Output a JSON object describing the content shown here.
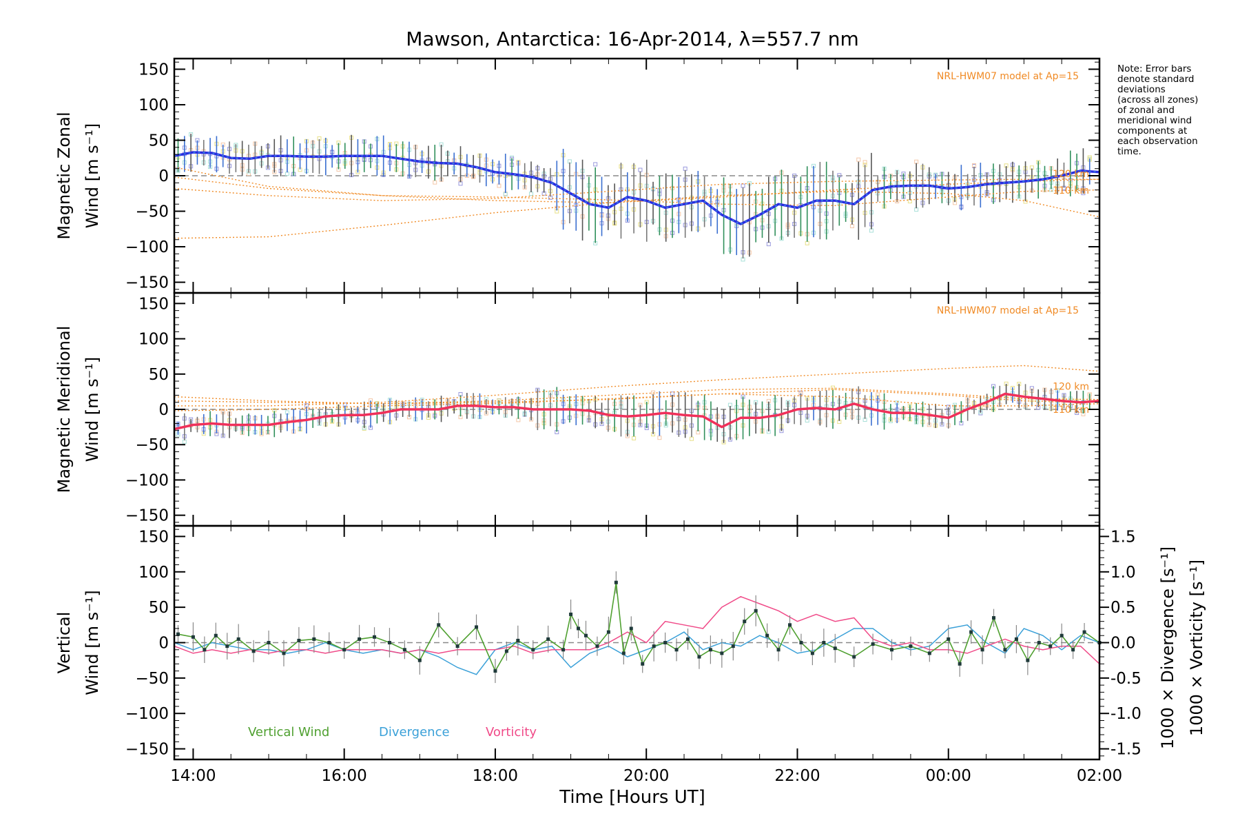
{
  "chart_data": {
    "title": "Mawson, Antarctica: 16-Apr-2014, λ=557.7 nm",
    "xlabel": "Time [Hours UT]",
    "x_ticks": [
      "14:00",
      "16:00",
      "18:00",
      "20:00",
      "22:00",
      "00:00",
      "02:00"
    ],
    "x_tick_hours": [
      14,
      16,
      18,
      20,
      22,
      24,
      26
    ],
    "xlim": [
      13.75,
      26.0
    ],
    "note_lines": [
      "Note: Error bars",
      "denote standard",
      "deviations",
      "(across all zones)",
      "of zonal and",
      "meridional wind",
      "components at",
      "each observation",
      "time."
    ],
    "colors": {
      "zonal": "#2a2ae0",
      "zonal_light": "#3a9fe0",
      "meridional": "#f0305a",
      "model": "#f08a24",
      "vertical": "#4fa030",
      "divergence": "#3aa0d8",
      "vorticity": "#f04a88",
      "zone_points": "#9999dd"
    },
    "panels": [
      {
        "id": "zonal",
        "type": "line",
        "ylabel_lines": [
          "Magnetic Zonal",
          "Wind [m s⁻¹]"
        ],
        "ylim": [
          -165,
          165
        ],
        "y_ticks": [
          150,
          100,
          50,
          0,
          -50,
          -100,
          -150
        ],
        "model_label": "NRL-HWM07 model at Ap=15",
        "model_height_labels": [
          "120 km",
          "110 km"
        ],
        "series": [
          {
            "role": "mean",
            "x": [
              13.75,
              14.0,
              14.25,
              14.5,
              14.75,
              15.0,
              15.25,
              15.5,
              15.75,
              16.0,
              16.25,
              16.5,
              16.75,
              17.0,
              17.25,
              17.5,
              17.75,
              18.0,
              18.25,
              18.5,
              18.75,
              19.0,
              19.25,
              19.5,
              19.75,
              20.0,
              20.25,
              20.5,
              20.75,
              21.0,
              21.25,
              21.5,
              21.75,
              22.0,
              22.25,
              22.5,
              22.75,
              23.0,
              23.25,
              23.5,
              23.75,
              24.0,
              24.25,
              24.5,
              24.75,
              25.0,
              25.25,
              25.5,
              25.75,
              26.0
            ],
            "y": [
              28,
              33,
              32,
              25,
              24,
              28,
              28,
              27,
              27,
              28,
              28,
              28,
              24,
              20,
              18,
              17,
              12,
              5,
              2,
              -2,
              -10,
              -25,
              -40,
              -45,
              -30,
              -35,
              -45,
              -40,
              -35,
              -55,
              -68,
              -55,
              -40,
              -45,
              -35,
              -35,
              -40,
              -20,
              -15,
              -14,
              -14,
              -18,
              -16,
              -12,
              -10,
              -8,
              -5,
              0,
              7,
              5
            ]
          },
          {
            "role": "model",
            "x": [
              13.75,
              15,
              16.5,
              18,
              19.5,
              21,
              22.5,
              24,
              25,
              26
            ],
            "y": [
              -18,
              -28,
              -35,
              -32,
              -22,
              -12,
              -8,
              -6,
              -5,
              -5
            ]
          },
          {
            "role": "model",
            "x": [
              13.75,
              15,
              16.5,
              18,
              19.5,
              21,
              22.5,
              24,
              25,
              26
            ],
            "y": [
              12,
              -15,
              -28,
              -35,
              -38,
              -30,
              -20,
              -12,
              -8,
              -5
            ]
          },
          {
            "role": "model",
            "x": [
              13.75,
              15,
              16.5,
              18,
              19.5,
              21,
              22.5,
              24,
              25,
              26
            ],
            "y": [
              -88,
              -86,
              -70,
              -52,
              -38,
              -28,
              -22,
              -25,
              -35,
              -58
            ]
          },
          {
            "role": "model",
            "x": [
              13.75,
              15,
              16.5,
              18,
              19.5,
              21,
              22.5,
              24,
              25,
              26
            ],
            "y": [
              -2,
              -18,
              -28,
              -30,
              -34,
              -40,
              -42,
              -30,
              -22,
              -20
            ]
          }
        ]
      },
      {
        "id": "meridional",
        "type": "line",
        "ylabel_lines": [
          "Magnetic Meridional",
          "Wind [m s⁻¹]"
        ],
        "ylim": [
          -165,
          165
        ],
        "y_ticks": [
          150,
          100,
          50,
          0,
          -50,
          -100,
          -150
        ],
        "model_label": "NRL-HWM07 model at Ap=15",
        "model_height_labels": [
          "120 km",
          "110 km"
        ],
        "series": [
          {
            "role": "mean",
            "x": [
              13.75,
              14.0,
              14.25,
              14.5,
              14.75,
              15.0,
              15.25,
              15.5,
              15.75,
              16.0,
              16.25,
              16.5,
              16.75,
              17.0,
              17.25,
              17.5,
              17.75,
              18.0,
              18.25,
              18.5,
              18.75,
              19.0,
              19.25,
              19.5,
              19.75,
              20.0,
              20.25,
              20.5,
              20.75,
              21.0,
              21.25,
              21.5,
              21.75,
              22.0,
              22.25,
              22.5,
              22.75,
              23.0,
              23.25,
              23.5,
              23.75,
              24.0,
              24.25,
              24.5,
              24.75,
              25.0,
              25.25,
              25.5,
              25.75,
              26.0
            ],
            "y": [
              -28,
              -22,
              -20,
              -22,
              -22,
              -22,
              -18,
              -15,
              -10,
              -8,
              -8,
              -5,
              0,
              0,
              0,
              5,
              5,
              3,
              3,
              0,
              0,
              0,
              -2,
              -8,
              -10,
              -8,
              -5,
              -8,
              -10,
              -25,
              -12,
              -12,
              -8,
              0,
              2,
              0,
              8,
              0,
              -5,
              -5,
              -8,
              -12,
              0,
              10,
              22,
              18,
              15,
              12,
              10,
              12
            ]
          },
          {
            "role": "model",
            "x": [
              13.75,
              15,
              16.5,
              18,
              19.5,
              21,
              22.5,
              24,
              25,
              26
            ],
            "y": [
              18,
              12,
              8,
              10,
              14,
              22,
              28,
              20,
              12,
              10
            ]
          },
          {
            "role": "model",
            "x": [
              13.75,
              15,
              16.5,
              18,
              19.5,
              21,
              22.5,
              24,
              25,
              26
            ],
            "y": [
              5,
              5,
              10,
              20,
              32,
              42,
              50,
              58,
              62,
              54
            ]
          },
          {
            "role": "model",
            "x": [
              13.75,
              15,
              16.5,
              18,
              19.5,
              21,
              22.5,
              24,
              25,
              26
            ],
            "y": [
              12,
              10,
              8,
              12,
              20,
              28,
              30,
              22,
              15,
              14
            ]
          },
          {
            "role": "model",
            "x": [
              13.75,
              15,
              16.5,
              18,
              19.5,
              21,
              22.5,
              24,
              25,
              26
            ],
            "y": [
              -2,
              0,
              5,
              8,
              15,
              22,
              18,
              5,
              5,
              8
            ]
          }
        ]
      },
      {
        "id": "vertical",
        "type": "line",
        "ylabel_lines": [
          "Vertical",
          "Wind [m s⁻¹]"
        ],
        "ylim": [
          -165,
          165
        ],
        "y_ticks": [
          150,
          100,
          50,
          0,
          -50,
          -100,
          -150
        ],
        "right_axis": {
          "ylim": [
            -1.65,
            1.65
          ],
          "y_ticks": [
            "1.5",
            "1.0",
            "0.5",
            "0.0",
            "-0.5",
            "-1.0",
            "-1.5"
          ],
          "y_tick_values": [
            1.5,
            1.0,
            0.5,
            0.0,
            -0.5,
            -1.0,
            -1.5
          ],
          "label_divergence": "1000 × Divergence [s⁻¹]",
          "label_vorticity": "1000 × Vorticity [s⁻¹]"
        },
        "legend": [
          "Vertical Wind",
          "Divergence",
          "Vorticity"
        ],
        "series": [
          {
            "name": "Vertical Wind",
            "x": [
              13.8,
              14.0,
              14.15,
              14.3,
              14.45,
              14.6,
              14.8,
              15.0,
              15.2,
              15.4,
              15.6,
              15.8,
              16.0,
              16.2,
              16.4,
              16.6,
              16.8,
              17.0,
              17.25,
              17.5,
              17.75,
              18.0,
              18.15,
              18.3,
              18.5,
              18.7,
              18.9,
              19.0,
              19.1,
              19.2,
              19.35,
              19.5,
              19.6,
              19.7,
              19.8,
              19.95,
              20.1,
              20.25,
              20.4,
              20.55,
              20.7,
              20.85,
              21.0,
              21.15,
              21.3,
              21.45,
              21.6,
              21.75,
              21.9,
              22.05,
              22.2,
              22.35,
              22.5,
              22.75,
              23.0,
              23.25,
              23.5,
              23.75,
              24.0,
              24.15,
              24.3,
              24.45,
              24.6,
              24.75,
              24.9,
              25.05,
              25.2,
              25.35,
              25.5,
              25.65,
              25.8,
              26.0
            ],
            "y": [
              12,
              8,
              -10,
              10,
              -5,
              5,
              -12,
              0,
              -15,
              3,
              5,
              0,
              -10,
              5,
              8,
              0,
              -10,
              -25,
              25,
              -5,
              22,
              -40,
              -12,
              3,
              -10,
              5,
              -10,
              40,
              20,
              10,
              -5,
              15,
              85,
              -15,
              20,
              -30,
              -5,
              0,
              -10,
              5,
              -20,
              -10,
              -15,
              -5,
              30,
              45,
              10,
              -10,
              25,
              0,
              -15,
              0,
              -8,
              -20,
              -2,
              -10,
              -5,
              -15,
              5,
              -30,
              15,
              -10,
              35,
              -10,
              5,
              -25,
              0,
              -5,
              10,
              -10,
              15,
              0
            ]
          },
          {
            "name": "Divergence",
            "x": [
              13.75,
              14.0,
              14.25,
              14.5,
              14.75,
              15.0,
              15.25,
              15.5,
              15.75,
              16.0,
              16.25,
              16.5,
              16.75,
              17.0,
              17.25,
              17.5,
              17.75,
              18.0,
              18.25,
              18.5,
              18.75,
              19.0,
              19.25,
              19.5,
              19.75,
              20.0,
              20.25,
              20.5,
              20.75,
              21.0,
              21.25,
              21.5,
              21.75,
              22.0,
              22.25,
              22.5,
              22.75,
              23.0,
              23.25,
              23.5,
              23.75,
              24.0,
              24.25,
              24.5,
              24.75,
              25.0,
              25.25,
              25.5,
              25.75,
              26.0
            ],
            "y": [
              0.0,
              -0.1,
              0.0,
              -0.05,
              -0.1,
              -0.1,
              -0.15,
              -0.1,
              0.0,
              -0.1,
              -0.15,
              -0.1,
              -0.15,
              -0.1,
              -0.2,
              -0.35,
              -0.45,
              -0.1,
              0.0,
              -0.1,
              -0.05,
              -0.35,
              -0.15,
              -0.05,
              -0.2,
              -0.1,
              0.0,
              0.15,
              -0.1,
              0.0,
              -0.05,
              0.1,
              0.0,
              -0.15,
              -0.1,
              0.05,
              0.2,
              0.2,
              0.0,
              -0.1,
              -0.05,
              0.2,
              0.25,
              0.0,
              -0.15,
              0.2,
              0.1,
              -0.1,
              0.1,
              0.0
            ]
          },
          {
            "name": "Vorticity",
            "x": [
              13.75,
              14.0,
              14.25,
              14.5,
              14.75,
              15.0,
              15.25,
              15.5,
              15.75,
              16.0,
              16.25,
              16.5,
              16.75,
              17.0,
              17.25,
              17.5,
              17.75,
              18.0,
              18.25,
              18.5,
              18.75,
              19.0,
              19.25,
              19.5,
              19.75,
              20.0,
              20.25,
              20.5,
              20.75,
              21.0,
              21.25,
              21.5,
              21.75,
              22.0,
              22.25,
              22.5,
              22.75,
              23.0,
              23.25,
              23.5,
              23.75,
              24.0,
              24.25,
              24.5,
              24.75,
              25.0,
              25.25,
              25.5,
              25.75,
              26.0
            ],
            "y": [
              -0.05,
              -0.15,
              -0.1,
              -0.15,
              -0.1,
              -0.15,
              -0.1,
              -0.1,
              -0.15,
              -0.1,
              -0.1,
              -0.1,
              -0.15,
              -0.1,
              -0.15,
              -0.1,
              -0.1,
              -0.1,
              -0.05,
              -0.15,
              -0.1,
              -0.1,
              -0.1,
              0.0,
              0.15,
              0.0,
              0.3,
              0.25,
              0.2,
              0.5,
              0.65,
              0.55,
              0.45,
              0.3,
              0.4,
              0.3,
              0.35,
              0.05,
              -0.05,
              0.0,
              -0.1,
              -0.1,
              -0.15,
              -0.05,
              0.05,
              -0.05,
              -0.1,
              -0.05,
              -0.05,
              -0.3
            ]
          }
        ]
      }
    ]
  }
}
